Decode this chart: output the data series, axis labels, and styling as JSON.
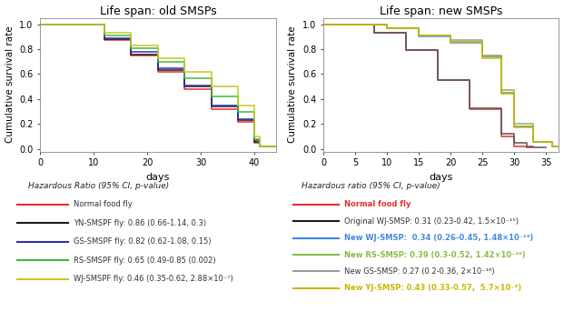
{
  "left_title": "Life span: old SMSPs",
  "right_title": "Life span: new SMSPs",
  "xlabel": "days",
  "ylabel": "Cumulative survival rate",
  "left_subtitle": "Hazardous Ratio (95% CI, p-value)",
  "right_subtitle": "Hazardous ratio (95% CI, p-value)",
  "left_legend": [
    {
      "label": "Normal food fly",
      "color": "#e03030",
      "bold": false,
      "colored": false
    },
    {
      "label": "YN-SMSPF fly: 0.86 (0.66-1.14, 0.3)",
      "color": "#1a1a1a",
      "bold": false,
      "colored": false
    },
    {
      "label": "GS-SMSPF fly: 0.82 (0.62-1.08, 0.15)",
      "color": "#3030b0",
      "bold": false,
      "colored": false
    },
    {
      "label": "RS-SMSPF fly: 0.65 (0.49-0.85 (0.002)",
      "color": "#40b840",
      "bold": false,
      "colored": false
    },
    {
      "label": "WJ-SMSPF fly: 0.46 (0.35-0.62, 2.88×10⁻⁷)",
      "color": "#c8c820",
      "bold": false,
      "colored": false
    }
  ],
  "right_legend": [
    {
      "label": "Normal food fly",
      "color": "#e03030",
      "bold": true,
      "colored": true
    },
    {
      "label": "Original WJ-SMSP: 0.31 (0.23-0.42, 1.5×10⁻¹⁵)",
      "color": "#1a1a1a",
      "bold": false,
      "colored": false
    },
    {
      "label": "New WJ-SMSP:  0.34 (0.26-0.45, 1.48×10⁻¹³)",
      "color": "#4488dd",
      "bold": true,
      "colored": true
    },
    {
      "label": "New RS-SMSP: 0.39 (0.3-0.52, 1.42×10⁻¹⁰)",
      "color": "#88bb44",
      "bold": true,
      "colored": true
    },
    {
      "label": "New GS-SMSP: 0.27 (0.2-0.36, 2×10⁻¹⁶)",
      "color": "#999999",
      "bold": false,
      "colored": false
    },
    {
      "label": "New YJ-SMSP: 0.43 (0.33-0.57,  5.7×10⁻⁹)",
      "color": "#c8b800",
      "bold": true,
      "colored": true
    }
  ],
  "left_xlim": [
    0,
    44
  ],
  "left_ylim": [
    -0.02,
    1.05
  ],
  "left_xticks": [
    0,
    10,
    20,
    30,
    40
  ],
  "left_yticks": [
    0.0,
    0.2,
    0.4,
    0.6,
    0.8,
    1.0
  ],
  "right_xlim": [
    0,
    37
  ],
  "right_ylim": [
    -0.02,
    1.05
  ],
  "right_xticks": [
    0,
    5,
    10,
    15,
    20,
    25,
    30,
    35
  ],
  "right_yticks": [
    0.0,
    0.2,
    0.4,
    0.6,
    0.8,
    1.0
  ],
  "background_color": "#ffffff",
  "plot_bg": "#ffffff"
}
